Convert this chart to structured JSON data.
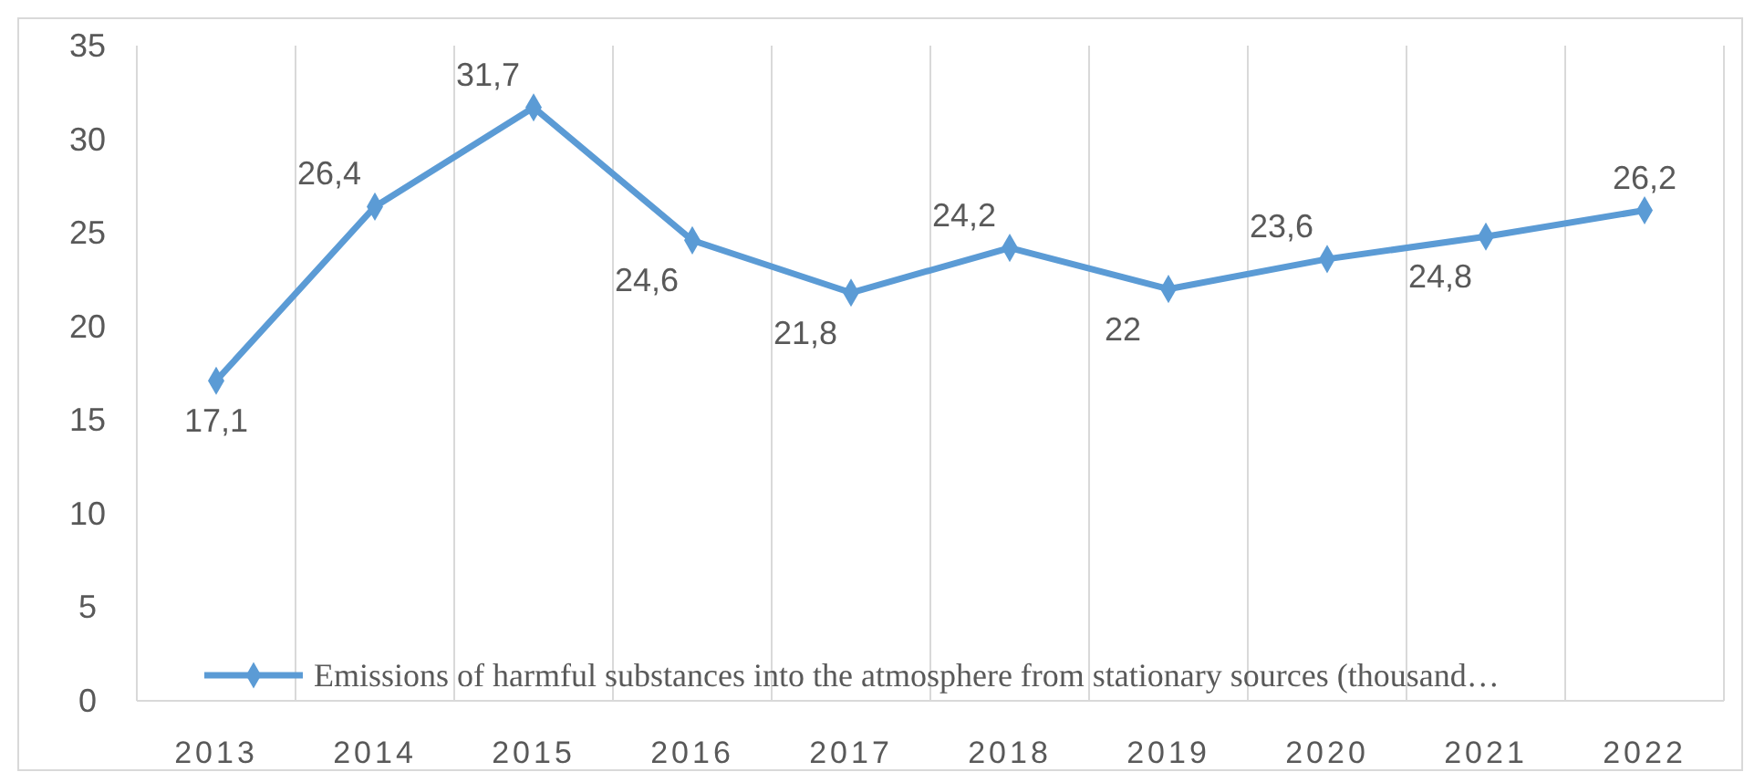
{
  "chart_data": {
    "type": "line",
    "categories": [
      "2013",
      "2014",
      "2015",
      "2016",
      "2017",
      "2018",
      "2019",
      "2020",
      "2021",
      "2022"
    ],
    "series": [
      {
        "name": "Emissions of harmful substances into the atmosphere from stationary sources (thousand…",
        "color": "#5b9bd5",
        "values": [
          17.1,
          26.4,
          31.7,
          24.6,
          21.8,
          24.2,
          22,
          23.6,
          24.8,
          26.2
        ],
        "value_labels": [
          "17,1",
          "26,4",
          "31,7",
          "24,6",
          "21,8",
          "24,2",
          "22",
          "23,6",
          "24,8",
          "26,2"
        ]
      }
    ],
    "ylim": [
      0,
      35
    ],
    "yticks": [
      0,
      5,
      10,
      15,
      20,
      25,
      30,
      35
    ],
    "grid": "x",
    "legend": "bottom",
    "marker": "diamond",
    "line_style": "solid"
  }
}
